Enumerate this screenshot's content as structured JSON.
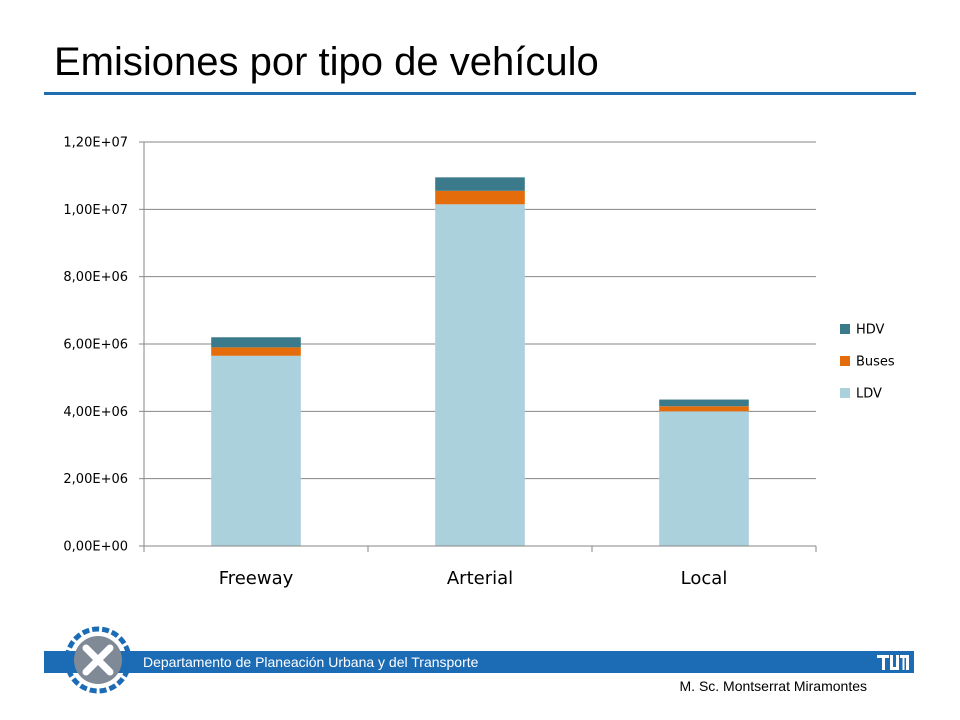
{
  "slide": {
    "title": "Emisiones por tipo de vehículo",
    "footer_text": "Departamento de Planeación Urbana y del Transporte",
    "author": "M. Sc. Montserrat Miramontes"
  },
  "colors": {
    "accent": "#1f6fb0",
    "footer_band": "#1b6bb5",
    "LDV": "#abd1dc",
    "Buses": "#e46c0a",
    "HDV": "#3b7a8a"
  },
  "chart_data": {
    "type": "bar",
    "stacked": true,
    "title": "",
    "xlabel": "",
    "ylabel": "",
    "categories": [
      "Freeway",
      "Arterial",
      "Local"
    ],
    "series": [
      {
        "name": "LDV",
        "values": [
          5650000,
          10150000,
          4000000
        ]
      },
      {
        "name": "Buses",
        "values": [
          250000,
          400000,
          150000
        ]
      },
      {
        "name": "HDV",
        "values": [
          300000,
          400000,
          200000
        ]
      }
    ],
    "ylim": [
      0,
      12000000
    ],
    "yticks": [
      0,
      2000000,
      4000000,
      6000000,
      8000000,
      10000000,
      12000000
    ],
    "ytick_labels": [
      "0,00E+00",
      "2,00E+06",
      "4,00E+06",
      "6,00E+06",
      "8,00E+06",
      "1,00E+07",
      "1,20E+07"
    ],
    "legend_order": [
      "HDV",
      "Buses",
      "LDV"
    ],
    "legend_position": "right",
    "grid": true
  }
}
